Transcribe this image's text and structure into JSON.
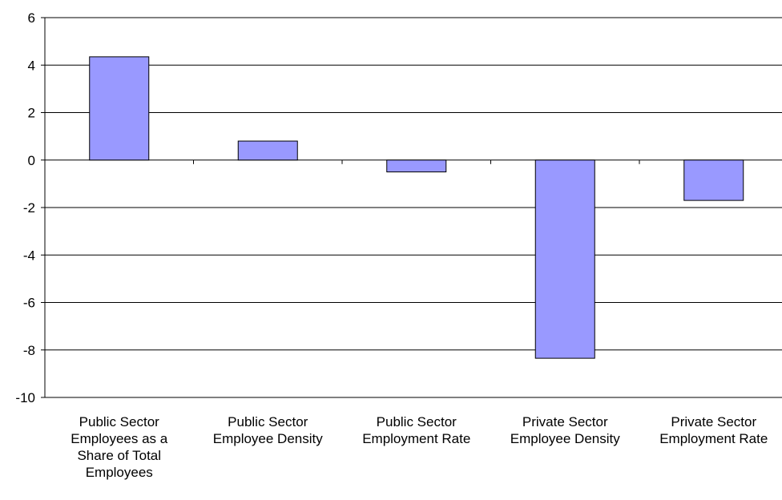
{
  "chart_data": {
    "type": "bar",
    "categories": [
      [
        "Public Sector",
        "Employees as a",
        "Share of Total",
        "Employees"
      ],
      [
        "Public Sector",
        "Employee Density"
      ],
      [
        "Public Sector",
        "Employment Rate"
      ],
      [
        "Private Sector",
        "Employee Density"
      ],
      [
        "Private Sector",
        "Employment Rate"
      ]
    ],
    "values": [
      4.35,
      0.8,
      -0.5,
      -8.35,
      -1.7
    ],
    "ylim": [
      -10,
      6
    ],
    "yticks": [
      "6",
      "4",
      "2",
      "0",
      "-2",
      "-4",
      "-6",
      "-8",
      "-10"
    ],
    "ytick_values": [
      6,
      4,
      2,
      0,
      -2,
      -4,
      -6,
      -8,
      -10
    ],
    "title": "",
    "xlabel": "",
    "ylabel": "",
    "grid": "horizontal",
    "legend": "none",
    "colors": {
      "bar_fill": "#9999ff",
      "bar_stroke": "#000000",
      "grid": "#000000",
      "axis": "#000000"
    }
  }
}
